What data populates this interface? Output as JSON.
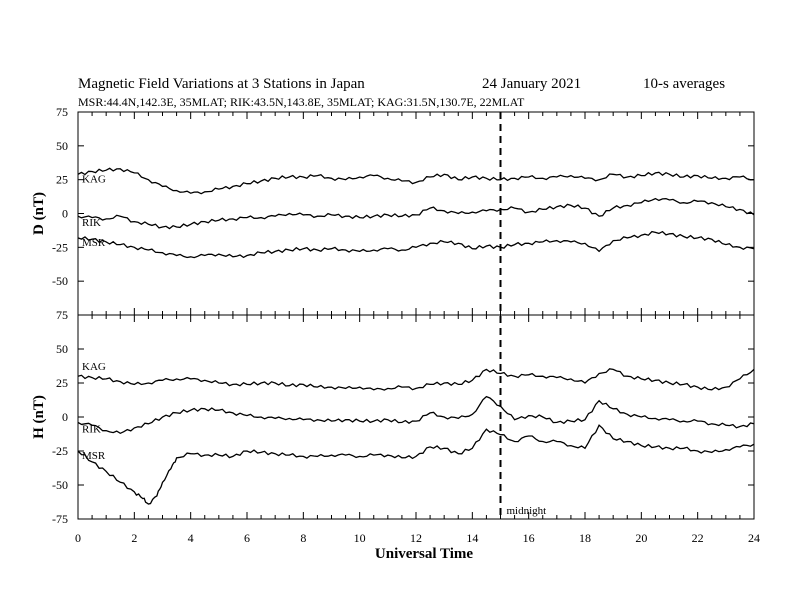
{
  "title": "Magnetic Field Variations at 3 Stations in Japan",
  "date": "24 January 2021",
  "averaging": "10-s averages",
  "stations_line": "MSR:44.4N,142.3E, 35MLAT;  RIK:43.5N,143.8E, 35MLAT;  KAG:31.5N,130.7E, 22MLAT",
  "chart_data": [
    {
      "type": "line",
      "ylabel": "D (nT)",
      "ylim": [
        -75,
        75
      ],
      "yticks": [
        -75,
        -50,
        -25,
        0,
        25,
        50,
        75
      ],
      "xlim": [
        0,
        24
      ],
      "series": [
        {
          "name": "KAG",
          "x": [
            0,
            0.5,
            1,
            1.5,
            2,
            2.5,
            3,
            3.5,
            4,
            4.5,
            5,
            5.5,
            6,
            6.5,
            7,
            7.5,
            8,
            8.5,
            9,
            9.5,
            10,
            10.5,
            11,
            11.5,
            12,
            12.5,
            13,
            13.5,
            14,
            14.5,
            15,
            15.5,
            16,
            16.5,
            17,
            17.5,
            18,
            18.5,
            19,
            19.5,
            20,
            20.5,
            21,
            21.5,
            22,
            22.5,
            23,
            23.5,
            24
          ],
          "y": [
            29,
            31,
            32,
            33,
            30,
            25,
            20,
            17,
            15,
            16,
            18,
            20,
            22,
            24,
            26,
            27,
            27,
            28,
            26,
            25,
            27,
            28,
            26,
            24,
            23,
            27,
            29,
            25,
            27,
            26,
            25,
            26,
            27,
            26,
            27,
            28,
            26,
            25,
            29,
            27,
            28,
            30,
            29,
            27,
            28,
            26,
            26,
            27,
            25
          ]
        },
        {
          "name": "RIK",
          "x": [
            0,
            0.5,
            1,
            1.5,
            2,
            2.5,
            3,
            3.5,
            4,
            4.5,
            5,
            5.5,
            6,
            6.5,
            7,
            7.5,
            8,
            8.5,
            9,
            9.5,
            10,
            10.5,
            11,
            11.5,
            12,
            12.5,
            13,
            13.5,
            14,
            14.5,
            15,
            15.5,
            16,
            16.5,
            17,
            17.5,
            18,
            18.5,
            19,
            19.5,
            20,
            20.5,
            21,
            21.5,
            22,
            22.5,
            23,
            23.5,
            24
          ],
          "y": [
            -2,
            -3,
            -4,
            -2,
            -6,
            -8,
            -10,
            -10,
            -8,
            -6,
            -5,
            -4,
            -3,
            -3,
            -2,
            0,
            -1,
            -2,
            -1,
            -2,
            -3,
            -2,
            -1,
            -2,
            -1,
            4,
            2,
            0,
            1,
            2,
            3,
            4,
            1,
            3,
            5,
            6,
            4,
            -2,
            4,
            6,
            8,
            11,
            10,
            8,
            9,
            8,
            5,
            3,
            -1
          ]
        },
        {
          "name": "MSR",
          "x": [
            0,
            0.5,
            1,
            1.5,
            2,
            2.5,
            3,
            3.5,
            4,
            4.5,
            5,
            5.5,
            6,
            6.5,
            7,
            7.5,
            8,
            8.5,
            9,
            9.5,
            10,
            10.5,
            11,
            11.5,
            12,
            12.5,
            13,
            13.5,
            14,
            14.5,
            15,
            15.5,
            16,
            16.5,
            17,
            17.5,
            18,
            18.5,
            19,
            19.5,
            20,
            20.5,
            21,
            21.5,
            22,
            22.5,
            23,
            23.5,
            24
          ],
          "y": [
            -18,
            -19,
            -21,
            -23,
            -25,
            -27,
            -29,
            -31,
            -32,
            -31,
            -30,
            -32,
            -31,
            -29,
            -28,
            -27,
            -26,
            -27,
            -26,
            -27,
            -28,
            -27,
            -26,
            -27,
            -25,
            -22,
            -21,
            -22,
            -26,
            -24,
            -25,
            -23,
            -22,
            -21,
            -20,
            -21,
            -22,
            -28,
            -20,
            -18,
            -16,
            -14,
            -15,
            -17,
            -18,
            -19,
            -23,
            -25,
            -26
          ]
        }
      ]
    },
    {
      "type": "line",
      "ylabel": "H (nT)",
      "ylim": [
        -75,
        75
      ],
      "yticks": [
        -75,
        -50,
        -25,
        0,
        25,
        50,
        75
      ],
      "xlim": [
        0,
        24
      ],
      "series": [
        {
          "name": "KAG",
          "x": [
            0,
            0.5,
            1,
            1.5,
            2,
            2.5,
            3,
            3.5,
            4,
            4.5,
            5,
            5.5,
            6,
            6.5,
            7,
            7.5,
            8,
            8.5,
            9,
            9.5,
            10,
            10.5,
            11,
            11.5,
            12,
            12.5,
            13,
            13.5,
            14,
            14.5,
            15,
            15.5,
            16,
            16.5,
            17,
            17.5,
            18,
            18.5,
            19,
            19.5,
            20,
            20.5,
            21,
            21.5,
            22,
            22.5,
            23,
            23.5,
            24
          ],
          "y": [
            30,
            29,
            28,
            26,
            24,
            25,
            27,
            28,
            28,
            27,
            25,
            24,
            24,
            25,
            25,
            23,
            24,
            22,
            22,
            21,
            22,
            20,
            21,
            22,
            21,
            24,
            25,
            24,
            27,
            35,
            32,
            30,
            31,
            30,
            29,
            28,
            25,
            32,
            35,
            30,
            28,
            27,
            25,
            24,
            22,
            20,
            22,
            28,
            35
          ]
        },
        {
          "name": "RIK",
          "x": [
            0,
            0.5,
            1,
            1.5,
            2,
            2.5,
            3,
            3.5,
            4,
            4.5,
            5,
            5.5,
            6,
            6.5,
            7,
            7.5,
            8,
            8.5,
            9,
            9.5,
            10,
            10.5,
            11,
            11.5,
            12,
            12.5,
            13,
            13.5,
            14,
            14.5,
            15,
            15.5,
            16,
            16.5,
            17,
            17.5,
            18,
            18.5,
            19,
            19.5,
            20,
            20.5,
            21,
            21.5,
            22,
            22.5,
            23,
            23.5,
            24
          ],
          "y": [
            -4,
            -6,
            -10,
            -12,
            -8,
            -5,
            0,
            3,
            5,
            6,
            5,
            3,
            1,
            0,
            -1,
            -1,
            -2,
            -2,
            -3,
            -2,
            -3,
            -3,
            -2,
            -4,
            -3,
            3,
            0,
            -1,
            2,
            15,
            8,
            -2,
            1,
            0,
            -4,
            -3,
            -2,
            12,
            6,
            2,
            0,
            -1,
            -2,
            -3,
            -3,
            -5,
            -6,
            -7,
            -5
          ]
        },
        {
          "name": "MSR",
          "x": [
            0,
            0.5,
            1,
            1.5,
            2,
            2.3,
            2.5,
            2.8,
            3,
            3.3,
            3.5,
            4,
            4.5,
            5,
            5.5,
            6,
            6.5,
            7,
            7.5,
            8,
            8.5,
            9,
            9.5,
            10,
            10.5,
            11,
            11.5,
            12,
            12.5,
            13,
            13.5,
            14,
            14.5,
            15,
            15.5,
            16,
            16.5,
            17,
            17.5,
            18,
            18.5,
            19,
            19.5,
            20,
            20.5,
            21,
            21.5,
            22,
            22.5,
            23,
            23.5,
            24
          ],
          "y": [
            -25,
            -33,
            -40,
            -48,
            -55,
            -60,
            -64,
            -58,
            -48,
            -38,
            -30,
            -27,
            -28,
            -28,
            -29,
            -25,
            -26,
            -27,
            -28,
            -29,
            -29,
            -28,
            -28,
            -29,
            -28,
            -28,
            -30,
            -29,
            -22,
            -23,
            -27,
            -23,
            -9,
            -13,
            -18,
            -14,
            -18,
            -18,
            -21,
            -23,
            -6,
            -16,
            -18,
            -21,
            -22,
            -23,
            -23,
            -25,
            -26,
            -24,
            -22,
            -20
          ]
        }
      ]
    }
  ],
  "x_axis": {
    "label": "Universal Time",
    "ticks": [
      0,
      2,
      4,
      6,
      8,
      10,
      12,
      14,
      16,
      18,
      20,
      22,
      24
    ]
  },
  "marker": {
    "label": "midnight",
    "x": 15
  }
}
